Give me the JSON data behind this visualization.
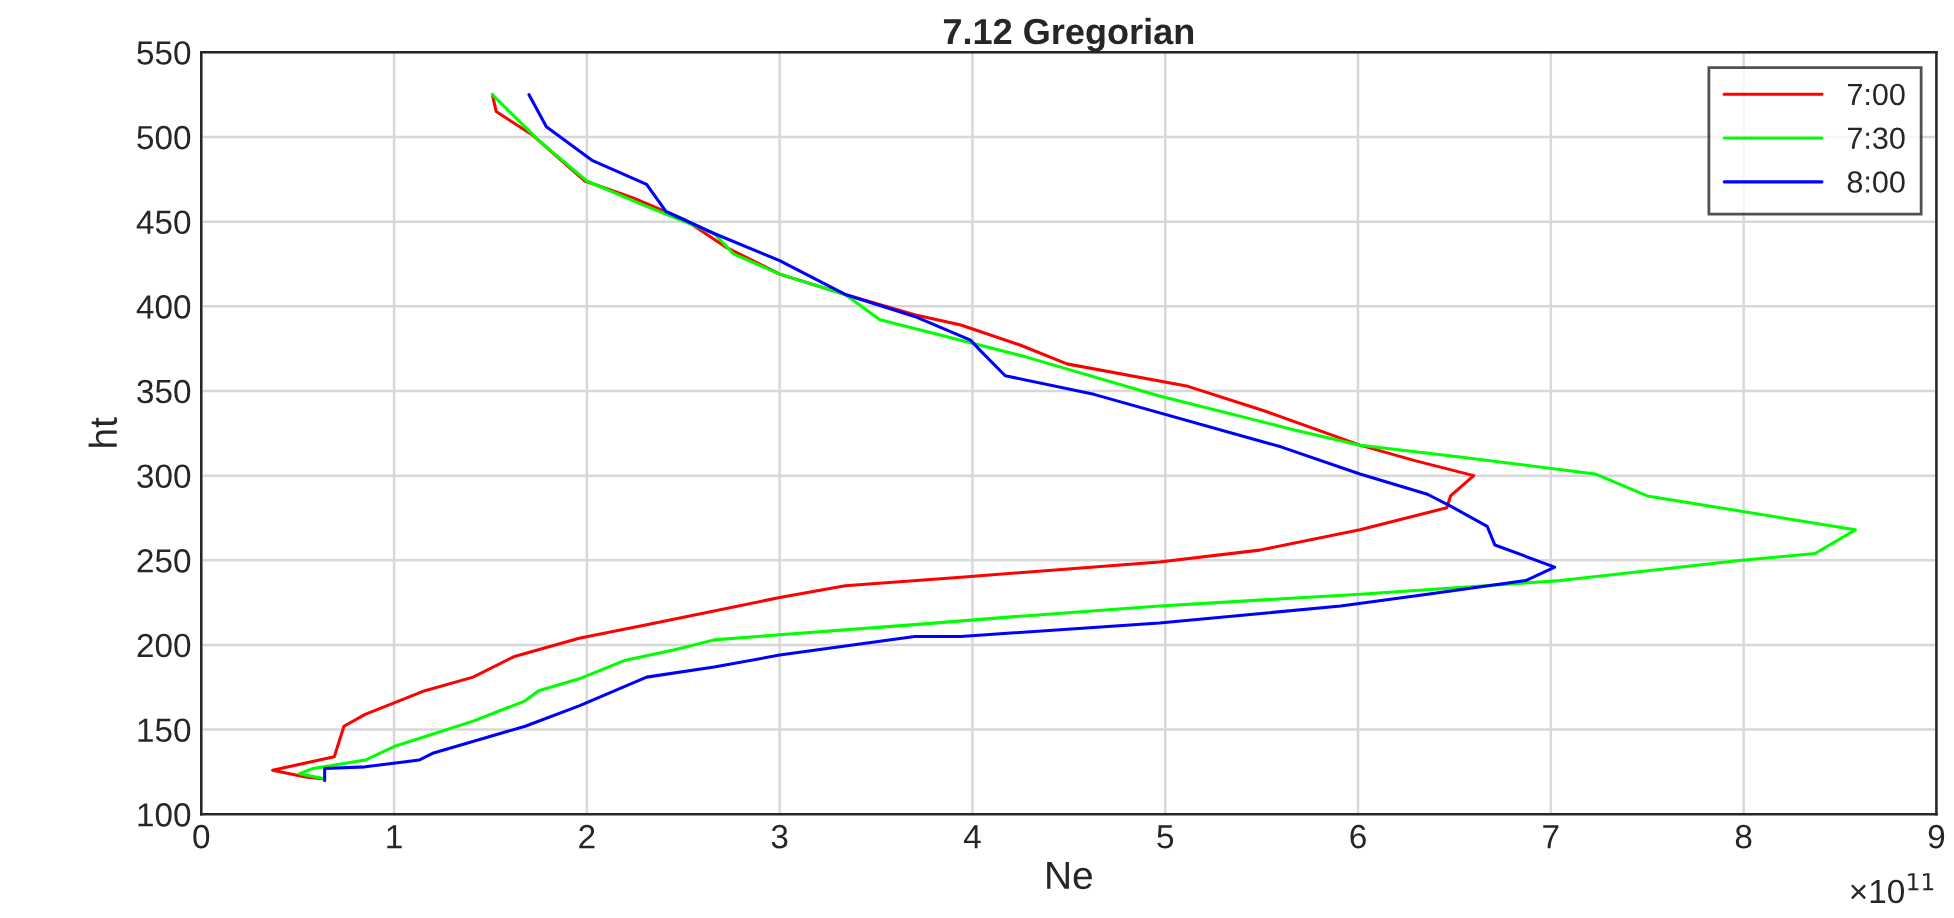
{
  "chart_data": {
    "type": "line",
    "title": "7.12 Gregorian",
    "xlabel": "Ne",
    "ylabel": "ht",
    "xlim": [
      0,
      9
    ],
    "xticks": [
      0,
      1,
      2,
      3,
      4,
      5,
      6,
      7,
      8,
      9
    ],
    "ylim": [
      100,
      550
    ],
    "yticks": [
      100,
      150,
      200,
      250,
      300,
      350,
      400,
      450,
      500,
      550
    ],
    "grid": true,
    "legend": "top right",
    "annotations": [
      "×10$^{11}$"
    ],
    "series": [
      {
        "name": "7:00",
        "color": "#ff0000",
        "x": [
          1.51,
          1.53,
          1.72,
          1.99,
          2.24,
          2.51,
          2.72,
          3.0,
          3.34,
          3.7,
          3.94,
          4.25,
          4.49,
          5.11,
          5.52,
          6.01,
          6.29,
          6.6,
          6.48,
          6.46,
          6.01,
          5.49,
          4.97,
          3.94,
          3.34,
          3.0,
          2.66,
          2.31,
          1.96,
          1.62,
          1.41,
          1.16,
          0.85,
          0.74,
          0.69,
          0.37,
          0.54,
          0.63
        ],
        "values": [
          525,
          515,
          501,
          474,
          464,
          451,
          435,
          419,
          407,
          395,
          389,
          377,
          366,
          353,
          338,
          318,
          309,
          300,
          288,
          281,
          268,
          256,
          249,
          240,
          235,
          228,
          220,
          212,
          204,
          193,
          181,
          173,
          159,
          152,
          134,
          126,
          122,
          121
        ]
      },
      {
        "name": "7:30",
        "color": "#00ff00",
        "x": [
          1.51,
          1.75,
          2.0,
          2.31,
          2.66,
          2.76,
          3.0,
          3.34,
          3.52,
          3.94,
          4.28,
          4.97,
          5.67,
          6.01,
          6.53,
          7.23,
          7.5,
          8.58,
          8.37,
          7.99,
          7.05,
          6.01,
          4.97,
          4.25,
          3.7,
          3.0,
          2.66,
          2.45,
          2.2,
          1.96,
          1.75,
          1.68,
          1.41,
          1.0,
          0.85,
          0.58,
          0.51,
          0.64
        ],
        "values": [
          525,
          498,
          474,
          459,
          443,
          431,
          419,
          407,
          392,
          380,
          370,
          347,
          327,
          318,
          311,
          301,
          288,
          268,
          254,
          250,
          238,
          230,
          223,
          217,
          212,
          206,
          203,
          197,
          191,
          180,
          173,
          167,
          155,
          140,
          132,
          127,
          124,
          121
        ]
      },
      {
        "name": "8:00",
        "color": "#0000ff",
        "x": [
          1.7,
          1.79,
          2.03,
          2.31,
          2.41,
          2.66,
          3.0,
          3.34,
          3.7,
          3.99,
          4.04,
          4.17,
          4.63,
          5.6,
          6.01,
          6.36,
          6.48,
          6.67,
          6.71,
          7.02,
          6.87,
          6.36,
          5.91,
          4.97,
          3.94,
          3.7,
          3.0,
          2.66,
          2.31,
          1.96,
          1.68,
          1.2,
          1.13,
          0.85,
          0.64,
          0.64
        ],
        "values": [
          525,
          506,
          486,
          472,
          456,
          443,
          427,
          407,
          394,
          380,
          374,
          359,
          348,
          317,
          301,
          289,
          282,
          270,
          259,
          246,
          238,
          230,
          223,
          213,
          205,
          205,
          194,
          187,
          181,
          164,
          152,
          136,
          132,
          128,
          127,
          120
        ]
      }
    ]
  }
}
